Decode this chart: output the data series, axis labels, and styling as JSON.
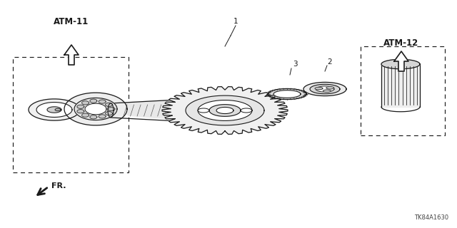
{
  "bg_color": "#ffffff",
  "line_color": "#1a1a1a",
  "atm11_label": "ATM-11",
  "atm12_label": "ATM-12",
  "fr_label": "FR.",
  "catalog_no": "TK84A1630",
  "figsize": [
    6.4,
    3.2
  ],
  "dpi": 100
}
